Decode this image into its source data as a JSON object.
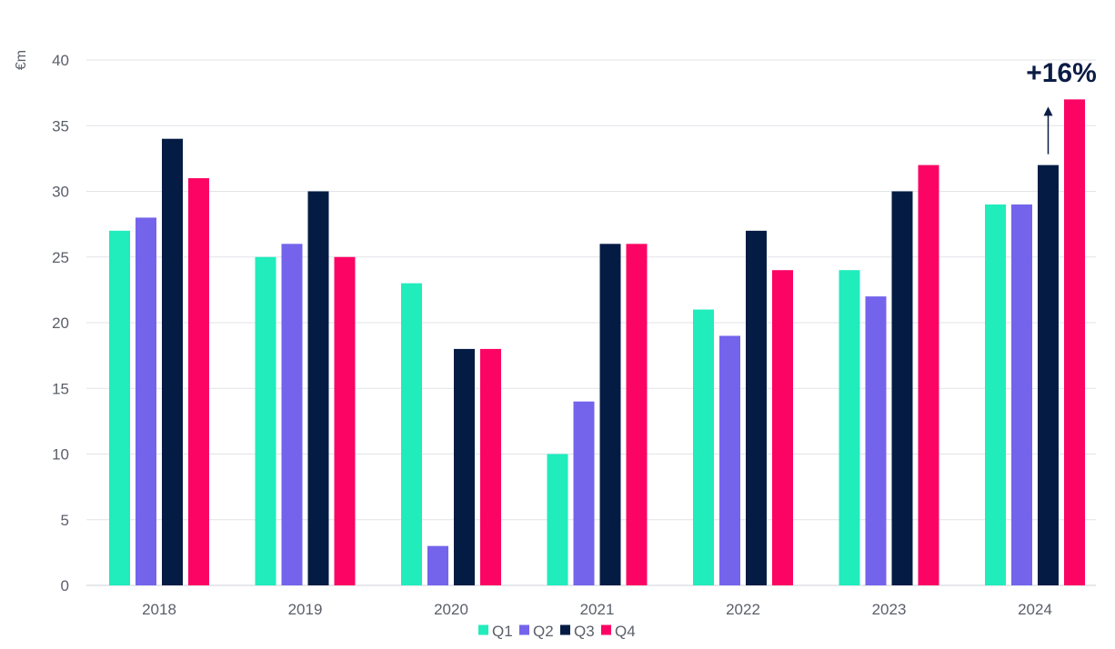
{
  "chart_data": {
    "type": "bar",
    "ylabel": "€m",
    "ylim": [
      0,
      40
    ],
    "yticks": [
      0,
      5,
      10,
      15,
      20,
      25,
      30,
      35,
      40
    ],
    "grid": true,
    "legend_position": "bottom",
    "categories": [
      "2018",
      "2019",
      "2020",
      "2021",
      "2022",
      "2023",
      "2024"
    ],
    "series": [
      {
        "name": "Q1",
        "color": "#20ecbc",
        "values": [
          27,
          25,
          23,
          10,
          21,
          24,
          29
        ]
      },
      {
        "name": "Q2",
        "color": "#7464ec",
        "values": [
          28,
          26,
          3,
          14,
          19,
          22,
          29
        ]
      },
      {
        "name": "Q3",
        "color": "#041c44",
        "values": [
          34,
          30,
          18,
          26,
          27,
          30,
          32
        ]
      },
      {
        "name": "Q4",
        "color": "#fc0464",
        "values": [
          31,
          25,
          18,
          26,
          24,
          32,
          37
        ]
      }
    ],
    "annotation": {
      "text": "+16%",
      "category": "2024",
      "from_series": "Q3",
      "to_series": "Q4",
      "color": "#0b1d45"
    }
  }
}
